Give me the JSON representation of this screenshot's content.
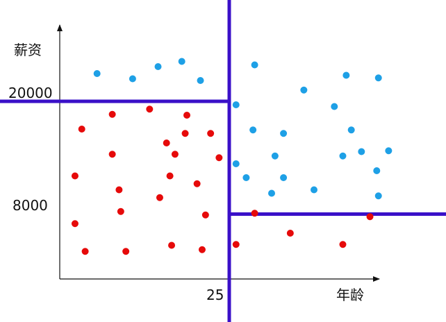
{
  "chart_data": {
    "type": "scatter",
    "title": "",
    "xlabel": "年龄",
    "ylabel": "薪资",
    "grid": false,
    "legend": "none",
    "xlim": [
      15,
      35
    ],
    "ylim": [
      0,
      28000
    ],
    "x_tick_labels": [
      "25"
    ],
    "y_tick_labels": [
      "20000",
      "8000"
    ],
    "dividers": [
      {
        "orientation": "horizontal",
        "y": 20000,
        "x_from": 15,
        "x_to": 25,
        "color": "#3a10c8"
      },
      {
        "orientation": "vertical",
        "x": 25,
        "color": "#3a10c8"
      },
      {
        "orientation": "horizontal",
        "y": 7000,
        "x_from": 25,
        "x_to": 40,
        "color": "#3a10c8"
      }
    ],
    "series": [
      {
        "color": "#1ea0e6",
        "points": [
          [
            17.2,
            23200
          ],
          [
            19.3,
            22600
          ],
          [
            20.8,
            24000
          ],
          [
            22.2,
            24600
          ],
          [
            23.3,
            22400
          ],
          [
            25.4,
            19600
          ],
          [
            26.5,
            24200
          ],
          [
            29.4,
            21300
          ],
          [
            31.9,
            23000
          ],
          [
            33.8,
            22700
          ],
          [
            26.4,
            16700
          ],
          [
            28.2,
            16300
          ],
          [
            31.2,
            19400
          ],
          [
            32.2,
            16700
          ],
          [
            27.7,
            13700
          ],
          [
            31.7,
            13700
          ],
          [
            32.8,
            14200
          ],
          [
            34.4,
            14300
          ],
          [
            25.4,
            12800
          ],
          [
            26.0,
            11200
          ],
          [
            28.2,
            11200
          ],
          [
            33.7,
            12000
          ],
          [
            27.5,
            9400
          ],
          [
            30.0,
            9800
          ],
          [
            33.8,
            9100
          ]
        ]
      },
      {
        "color": "#e60a0a",
        "points": [
          [
            16.3,
            16800
          ],
          [
            18.1,
            18500
          ],
          [
            20.3,
            19100
          ],
          [
            22.5,
            18400
          ],
          [
            21.3,
            15200
          ],
          [
            22.4,
            16300
          ],
          [
            23.9,
            16300
          ],
          [
            18.1,
            13900
          ],
          [
            21.8,
            13900
          ],
          [
            24.4,
            13500
          ],
          [
            15.9,
            11400
          ],
          [
            21.5,
            11400
          ],
          [
            23.1,
            10500
          ],
          [
            18.5,
            9800
          ],
          [
            20.9,
            8900
          ],
          [
            18.6,
            7300
          ],
          [
            23.6,
            6900
          ],
          [
            15.9,
            5900
          ],
          [
            16.5,
            2700
          ],
          [
            18.9,
            2700
          ],
          [
            21.6,
            3400
          ],
          [
            23.4,
            2900
          ],
          [
            25.4,
            3500
          ],
          [
            26.5,
            7100
          ],
          [
            28.6,
            4800
          ],
          [
            31.7,
            3500
          ],
          [
            33.3,
            6700
          ]
        ]
      }
    ]
  }
}
